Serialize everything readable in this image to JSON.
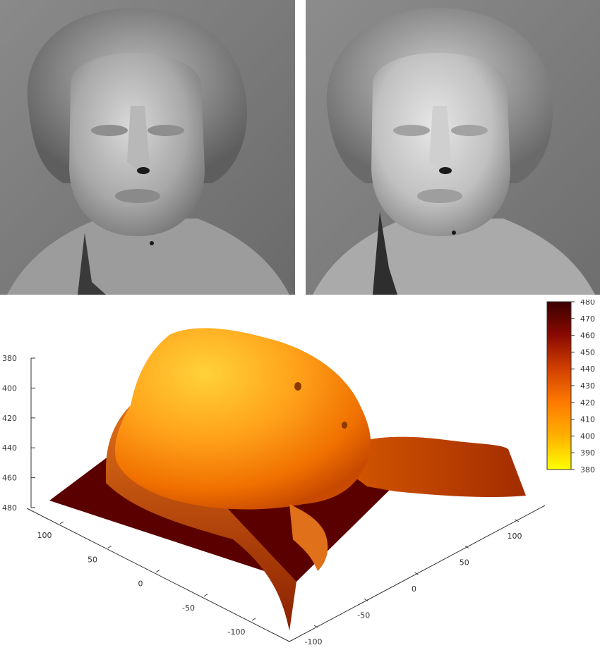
{
  "images": [
    {
      "name": "bust-render-shaded",
      "description_icon": "bust-face-icon"
    },
    {
      "name": "bust-render-smooth",
      "description_icon": "bust-face-icon"
    }
  ],
  "chart_data": {
    "type": "surface",
    "title": "",
    "xlabel": "",
    "ylabel": "",
    "zlabel": "",
    "x_ticks": [
      -100,
      -50,
      0,
      50,
      100
    ],
    "y_ticks": [
      -100,
      -50,
      0,
      50,
      100
    ],
    "z_ticks": [
      380,
      400,
      420,
      440,
      460,
      480
    ],
    "z_range": [
      380,
      480
    ],
    "z_reversed": true,
    "colorbar": {
      "ticks": [
        380,
        390,
        400,
        410,
        420,
        430,
        440,
        450,
        460,
        470,
        480
      ],
      "range": [
        380,
        480
      ],
      "colormap": [
        "#ffff00",
        "#ffb000",
        "#ff7a00",
        "#d24000",
        "#8a0a00",
        "#3a0000"
      ],
      "placement": "top-right"
    }
  }
}
